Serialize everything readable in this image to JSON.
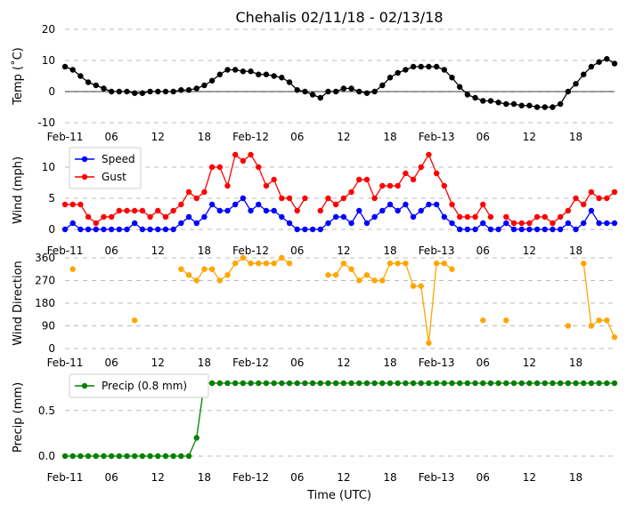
{
  "chart_data": [
    {
      "type": "line",
      "title": "Chehalis 02/11/18 - 02/13/18",
      "ylabel": "Temp ($^\\circ$C)",
      "ylabel_text": "Temp (˚C)",
      "ylim": [
        -10,
        20
      ],
      "yticks": [
        "-10",
        "0",
        "10",
        "20"
      ],
      "hline": 0,
      "grid": "horizontal-dashed",
      "series": [
        {
          "color": "#000000",
          "values": [
            8,
            7,
            5,
            3,
            2,
            1,
            0,
            0,
            0,
            -0.5,
            -0.5,
            0,
            0,
            0,
            0,
            0.5,
            0.5,
            1,
            2,
            3.5,
            5.5,
            7,
            7,
            6.5,
            6.5,
            5.5,
            5.5,
            5,
            4.5,
            3,
            0.5,
            0,
            -1,
            -2,
            0,
            0,
            1,
            1,
            0,
            -0.5,
            0,
            2,
            4.5,
            6,
            7,
            8,
            8,
            8,
            8,
            7,
            4.5,
            1.5,
            -1,
            -2,
            -3,
            -3,
            -3.5,
            -4,
            -4,
            -4.5,
            -4.5,
            -5,
            -5,
            -5,
            -4,
            0,
            2.5,
            5.5,
            8,
            9.5,
            10.5,
            9
          ]
        }
      ]
    },
    {
      "type": "line",
      "ylabel": "Wind (mph)",
      "ylim": [
        0,
        13
      ],
      "yticks": [
        "0",
        "5",
        "10"
      ],
      "legend": "top-left",
      "grid": "horizontal-dashed",
      "series": [
        {
          "name": "Speed",
          "color": "#0000ff",
          "values": [
            0,
            1,
            0,
            0,
            0,
            0,
            0,
            0,
            0,
            1,
            0,
            0,
            0,
            0,
            0,
            1,
            2,
            1,
            2,
            4,
            3,
            3,
            4,
            5,
            3,
            4,
            3,
            3,
            2,
            1,
            0,
            0,
            0,
            0,
            1,
            2,
            2,
            1,
            3,
            1,
            2,
            3,
            4,
            3,
            4,
            2,
            3,
            4,
            4,
            2,
            1,
            0,
            0,
            0,
            1,
            0,
            0,
            1,
            0,
            0,
            0,
            0,
            0,
            0,
            0,
            1,
            0,
            1,
            3,
            1,
            1,
            1
          ]
        },
        {
          "name": "Gust",
          "color": "#ff0000",
          "values": [
            4,
            4,
            4,
            2,
            1,
            2,
            2,
            3,
            3,
            3,
            3,
            2,
            3,
            2,
            3,
            4,
            6,
            5,
            6,
            10,
            10,
            7,
            12,
            11,
            12,
            10,
            7,
            8,
            5,
            5,
            3,
            5,
            null,
            3,
            5,
            4,
            5,
            6,
            8,
            8,
            5,
            7,
            7,
            7,
            9,
            8,
            10,
            12,
            9,
            7,
            4,
            2,
            2,
            2,
            4,
            2,
            null,
            2,
            1,
            1,
            1,
            2,
            2,
            1,
            2,
            3,
            5,
            4,
            6,
            5,
            5,
            6
          ]
        }
      ]
    },
    {
      "type": "scatter",
      "ylabel": "Wind Direction",
      "ylim": [
        0,
        360
      ],
      "yticks": [
        "0",
        "90",
        "180",
        "270",
        "360"
      ],
      "grid": "horizontal-dashed",
      "series": [
        {
          "color": "#ffa500",
          "values": [
            null,
            315,
            null,
            null,
            null,
            null,
            null,
            null,
            null,
            112,
            null,
            null,
            null,
            null,
            null,
            315,
            292,
            270,
            315,
            315,
            270,
            292,
            338,
            360,
            338,
            338,
            338,
            338,
            360,
            338,
            null,
            null,
            null,
            null,
            292,
            292,
            338,
            315,
            270,
            292,
            270,
            270,
            338,
            338,
            338,
            248,
            248,
            22,
            338,
            338,
            315,
            null,
            null,
            null,
            112,
            null,
            null,
            112,
            null,
            null,
            null,
            null,
            null,
            null,
            null,
            90,
            null,
            338,
            90,
            112,
            112,
            45
          ]
        }
      ]
    },
    {
      "type": "line",
      "ylabel": "Precip (mm)",
      "ylim": [
        0,
        0.8
      ],
      "yticks": [
        "0.0",
        "0.5"
      ],
      "legend": "top-left",
      "grid": "horizontal-dashed",
      "series": [
        {
          "name": "Precip (0.8 mm)",
          "color": "#008000",
          "values": [
            0,
            0,
            0,
            0,
            0,
            0,
            0,
            0,
            0,
            0,
            0,
            0,
            0,
            0,
            0,
            0,
            0,
            0.2,
            0.8,
            0.8,
            0.8,
            0.8,
            0.8,
            0.8,
            0.8,
            0.8,
            0.8,
            0.8,
            0.8,
            0.8,
            0.8,
            0.8,
            0.8,
            0.8,
            0.8,
            0.8,
            0.8,
            0.8,
            0.8,
            0.8,
            0.8,
            0.8,
            0.8,
            0.8,
            0.8,
            0.8,
            0.8,
            0.8,
            0.8,
            0.8,
            0.8,
            0.8,
            0.8,
            0.8,
            0.8,
            0.8,
            0.8,
            0.8,
            0.8,
            0.8,
            0.8,
            0.8,
            0.8,
            0.8,
            0.8,
            0.8,
            0.8,
            0.8,
            0.8,
            0.8,
            0.8,
            0.8
          ]
        }
      ]
    }
  ],
  "x_axis": {
    "xlabel": "Time (UTC)",
    "start": "2018-02-11 00:00",
    "step_hours": 1,
    "ticks": [
      {
        "hour": 0,
        "label": "Feb-11"
      },
      {
        "hour": 6,
        "label": "06"
      },
      {
        "hour": 12,
        "label": "12"
      },
      {
        "hour": 18,
        "label": "18"
      },
      {
        "hour": 24,
        "label": "Feb-12"
      },
      {
        "hour": 30,
        "label": "06"
      },
      {
        "hour": 36,
        "label": "12"
      },
      {
        "hour": 42,
        "label": "18"
      },
      {
        "hour": 48,
        "label": "Feb-13"
      },
      {
        "hour": 54,
        "label": "06"
      },
      {
        "hour": 60,
        "label": "12"
      },
      {
        "hour": 66,
        "label": "18"
      }
    ]
  }
}
